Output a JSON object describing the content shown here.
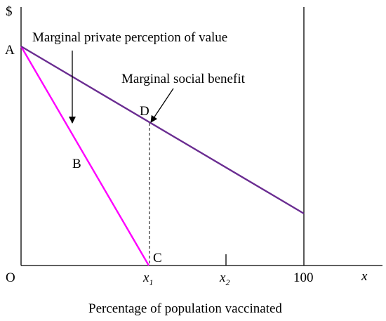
{
  "axes": {
    "y_label": "$",
    "origin_label": "O",
    "x_label": "x",
    "caption": "Percentage of population vaccinated",
    "x_ticks": {
      "x1_base": "x",
      "x1_sub": "1",
      "x2_base": "x",
      "x2_sub": "2",
      "hundred": "100"
    }
  },
  "points": {
    "a": "A",
    "b": "B",
    "c": "C",
    "d": "D"
  },
  "annotations": {
    "private_value": "Marginal private perception of value",
    "social_benefit": "Marginal social benefit"
  },
  "colors": {
    "private_line": "#ff00ff",
    "social_line": "#6a2c91",
    "axis": "#000000"
  }
}
